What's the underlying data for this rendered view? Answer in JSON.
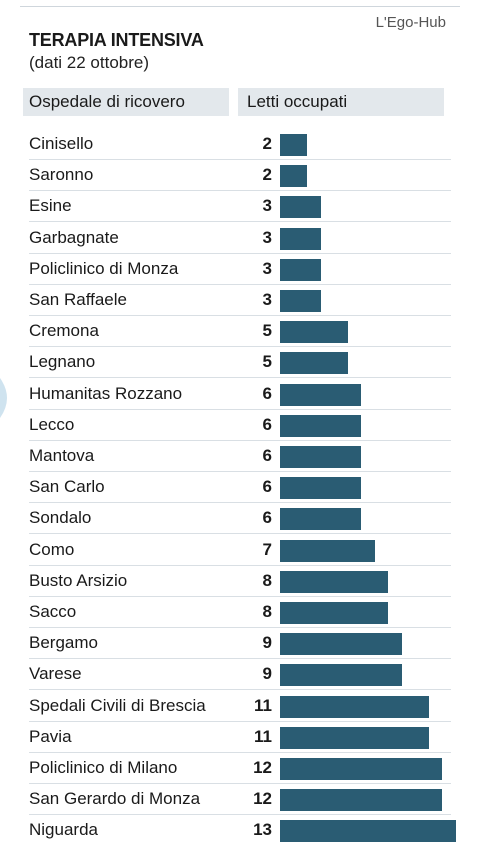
{
  "credit": "L'Ego-Hub",
  "title": "TERAPIA INTENSIVA",
  "subtitle": "(dati 22 ottobre)",
  "header": {
    "col_hospital": "Ospedale di ricovero",
    "col_beds": "Letti occupati"
  },
  "colors": {
    "bar": "#2a5c73",
    "header_bg": "#e3e8ec"
  },
  "chart_data": {
    "type": "bar",
    "orientation": "horizontal",
    "title": "TERAPIA INTENSIVA",
    "subtitle": "(dati 22 ottobre)",
    "xlabel": "Letti occupati",
    "ylabel": "Ospedale di ricovero",
    "grid": false,
    "categories": [
      "Cinisello",
      "Saronno",
      "Esine",
      "Garbagnate",
      "Policlinico di Monza",
      "San Raffaele",
      "Cremona",
      "Legnano",
      "Humanitas Rozzano",
      "Lecco",
      "Mantova",
      "San Carlo",
      "Sondalo",
      "Como",
      "Busto Arsizio",
      "Sacco",
      "Bergamo",
      "Varese",
      "Spedali Civili di Brescia",
      "Pavia",
      "Policlinico di Milano",
      "San Gerardo di Monza",
      "Niguarda"
    ],
    "values": [
      2,
      2,
      3,
      3,
      3,
      3,
      5,
      5,
      6,
      6,
      6,
      6,
      6,
      7,
      8,
      8,
      9,
      9,
      11,
      11,
      12,
      12,
      13
    ],
    "xlim": [
      0,
      13
    ]
  }
}
